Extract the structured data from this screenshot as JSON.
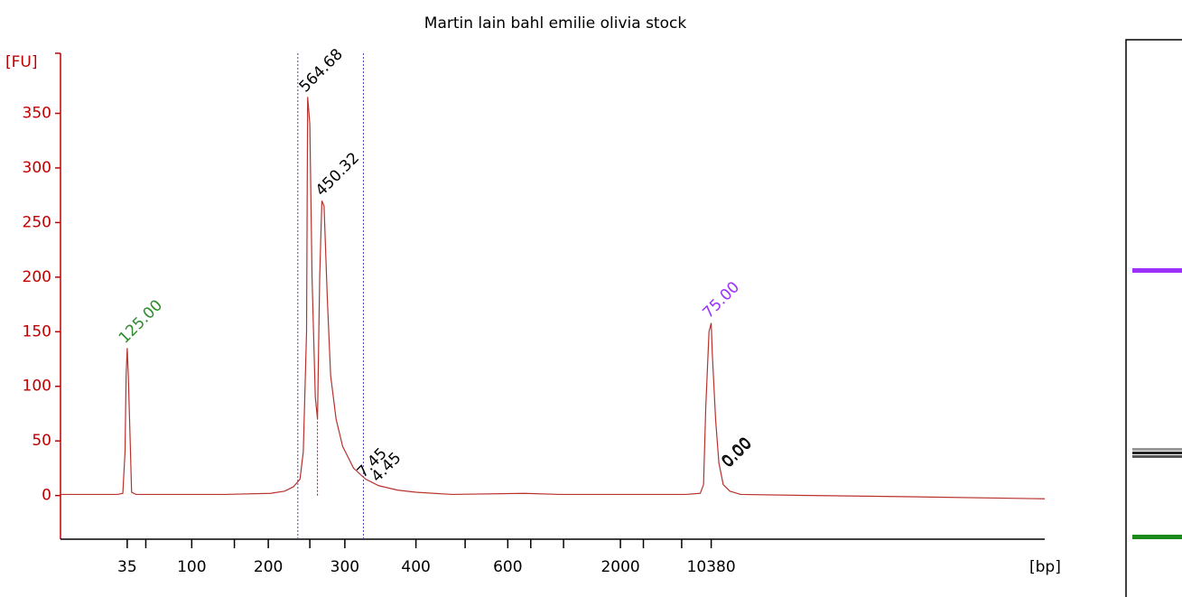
{
  "chart_data": {
    "type": "line",
    "title": "Martin lain bahl emilie olivia stock",
    "y_label": "[FU]",
    "x_label": "[bp]",
    "xlim": [
      40,
      130
    ],
    "ylim": [
      -40,
      405
    ],
    "yticks": [
      0,
      50,
      100,
      150,
      200,
      250,
      300,
      350
    ],
    "xticks": [
      {
        "value": 46.1,
        "label": "35"
      },
      {
        "value": 52.0,
        "label": "100"
      },
      {
        "value": 59.0,
        "label": "200"
      },
      {
        "value": 66.0,
        "label": "300"
      },
      {
        "value": 72.5,
        "label": "400"
      },
      {
        "value": 80.9,
        "label": "600"
      },
      {
        "value": 91.2,
        "label": "2000"
      },
      {
        "value": 99.5,
        "label": "10380"
      }
    ],
    "xminorticks": [
      47.8,
      55.9,
      62.8,
      77.0,
      83.0,
      86.0,
      93.3,
      96.8
    ],
    "region_lines": [
      61.7,
      67.7
    ],
    "peak_lines": [
      63.5
    ],
    "series": [
      {
        "color": "#b8322e",
        "x": [
          40.0,
          45.2,
          45.7,
          45.9,
          46.0,
          46.1,
          46.2,
          46.4,
          46.5,
          46.9,
          55.1,
          59.2,
          60.5,
          61.3,
          61.9,
          62.2,
          62.5,
          62.6,
          62.8,
          63.0,
          63.3,
          63.5,
          63.7,
          63.9,
          64.1,
          64.4,
          64.7,
          65.2,
          65.8,
          66.8,
          67.9,
          69.1,
          70.8,
          72.5,
          75.8,
          82.4,
          85.7,
          92.3,
          97.2,
          98.5,
          98.8,
          99.0,
          99.3,
          99.5,
          99.6,
          99.9,
          100.2,
          100.6,
          101.2,
          102.2,
          108.8,
          117.0,
          130.0
        ],
        "values": [
          1,
          1,
          2,
          40,
          110,
          135,
          110,
          40,
          3,
          1,
          1,
          2,
          4,
          8,
          15,
          40,
          150,
          365,
          340,
          200,
          90,
          70,
          200,
          270,
          265,
          180,
          110,
          70,
          45,
          25,
          15,
          9,
          5,
          3,
          1,
          2,
          1,
          1,
          1,
          2,
          10,
          80,
          150,
          158,
          130,
          70,
          30,
          10,
          4,
          1,
          0,
          -1,
          -3
        ]
      }
    ],
    "annotations": [
      {
        "text": "125.00",
        "x": 46.1,
        "y": 135,
        "color": "#2e8b2e"
      },
      {
        "text": "564.68",
        "x": 62.6,
        "y": 365,
        "color": "#000000"
      },
      {
        "text": "450.32",
        "x": 64.1,
        "y": 270,
        "color": "#000000"
      },
      {
        "text": "7.45",
        "x": 67.9,
        "y": 12,
        "color": "#000000"
      },
      {
        "text": "4.45",
        "x": 69.2,
        "y": 8,
        "color": "#000000"
      },
      {
        "text": "75.00",
        "x": 99.5,
        "y": 158,
        "color": "#9b30ff"
      },
      {
        "text": "0.00",
        "x": 101.2,
        "y": 22,
        "color": "#000000"
      },
      {
        "text": "0.00",
        "x": 101.3,
        "y": 21,
        "color": "#000000"
      }
    ]
  }
}
